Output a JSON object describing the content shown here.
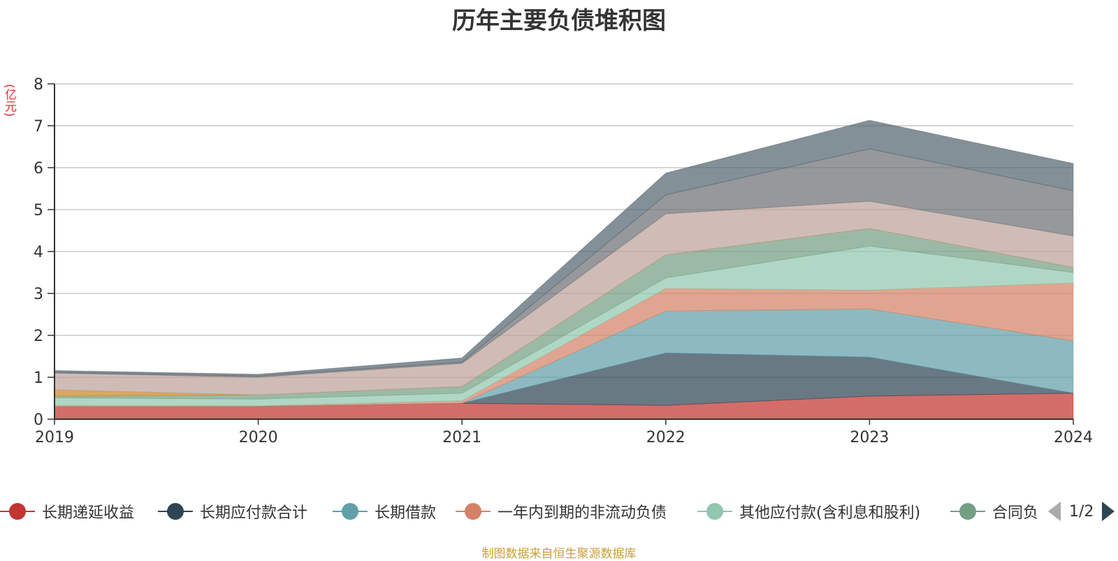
{
  "chart_data": {
    "type": "area",
    "stacked": true,
    "title": "历年主要负债堆积图",
    "unit_label": "(亿元)",
    "x": [
      "2019",
      "2020",
      "2021",
      "2022",
      "2023",
      "2024"
    ],
    "ylim": [
      0,
      8
    ],
    "yticks": [
      "0",
      "1",
      "2",
      "3",
      "4",
      "5",
      "6",
      "7",
      "8"
    ],
    "grid": true,
    "legend_position": "bottom",
    "series": [
      {
        "name": "长期递延收益",
        "color": "#c23531",
        "values": [
          0.3,
          0.3,
          0.38,
          0.33,
          0.55,
          0.62
        ]
      },
      {
        "name": "长期应付款合计",
        "color": "#2f4554",
        "values": [
          0,
          0,
          0,
          1.25,
          0.93,
          0
        ]
      },
      {
        "name": "长期借款",
        "color": "#61a0a8",
        "values": [
          0,
          0,
          0,
          1.0,
          1.15,
          1.25
        ]
      },
      {
        "name": "一年内到期的非流动负债",
        "color": "#d48265",
        "values": [
          0.03,
          0.02,
          0.06,
          0.54,
          0.45,
          1.38
        ]
      },
      {
        "name": "其他应付款(含利息和股利)",
        "color": "#91c7ae",
        "values": [
          0.18,
          0.16,
          0.18,
          0.25,
          1.05,
          0.25
        ]
      },
      {
        "name": "合同负债",
        "color": "#749f83",
        "values": [
          0.04,
          0.1,
          0.16,
          0.55,
          0.42,
          0.12
        ]
      },
      {
        "name": "",
        "color": "#ca8622",
        "values": [
          0.15,
          0.0,
          0.0,
          0.0,
          0.0,
          0.0
        ]
      },
      {
        "name": "",
        "color": "#bda29a",
        "values": [
          0.4,
          0.42,
          0.55,
          0.98,
          0.65,
          0.75
        ]
      },
      {
        "name": "",
        "color": "#6e7074",
        "values": [
          0.02,
          0.03,
          0.03,
          0.45,
          1.25,
          1.08
        ]
      },
      {
        "name": "",
        "color": "#546570",
        "values": [
          0.04,
          0.04,
          0.1,
          0.52,
          0.68,
          0.65
        ]
      }
    ]
  },
  "legend": {
    "items": [
      {
        "label": "长期递延收益",
        "color": "#c23531"
      },
      {
        "label": "长期应付款合计",
        "color": "#2f4554"
      },
      {
        "label": "长期借款",
        "color": "#61a0a8"
      },
      {
        "label": "一年内到期的非流动负债",
        "color": "#d48265"
      },
      {
        "label": "其他应付款(含利息和股利)",
        "color": "#91c7ae"
      },
      {
        "label": "合同负",
        "color": "#749f83"
      }
    ],
    "page": "1/2"
  },
  "source_note": "制图数据来自恒生聚源数据库"
}
